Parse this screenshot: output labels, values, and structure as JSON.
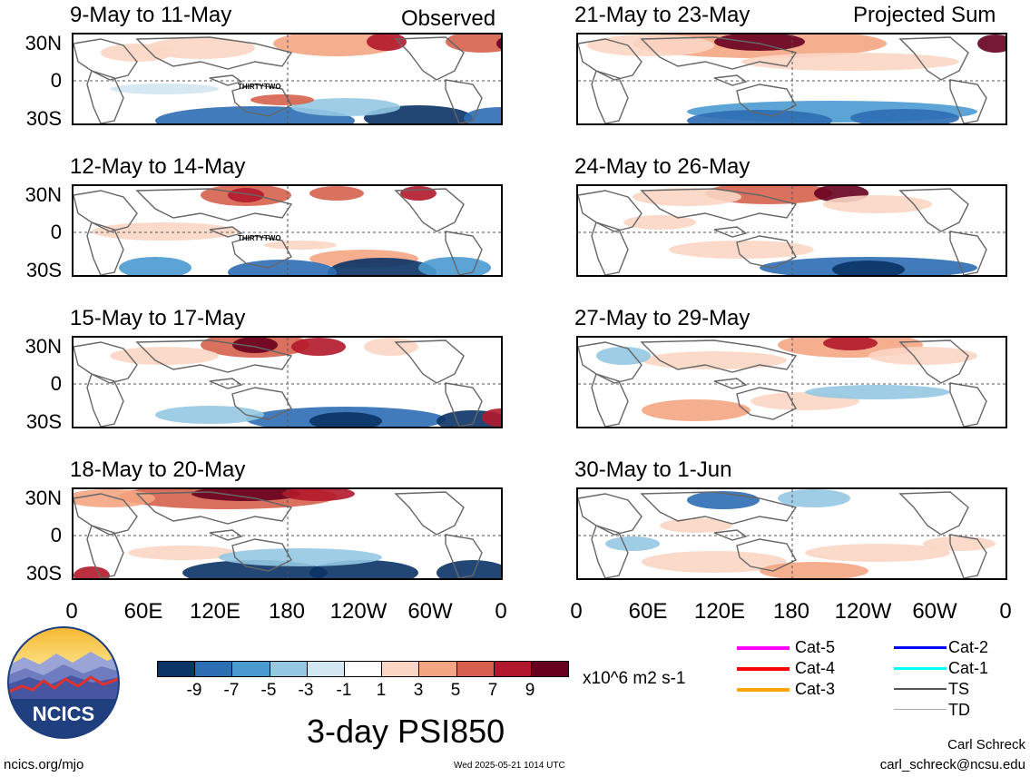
{
  "panels_left": [
    {
      "title": "9-May to 11-May",
      "tag": "Observed",
      "storm": "THIRTYTWO",
      "variant": 0
    },
    {
      "title": "12-May to 14-May",
      "tag": "",
      "storm": "THIRTYTWO",
      "variant": 1
    },
    {
      "title": "15-May to 17-May",
      "tag": "",
      "storm": "",
      "variant": 2
    },
    {
      "title": "18-May to 20-May",
      "tag": "",
      "storm": "",
      "variant": 3
    }
  ],
  "panels_right": [
    {
      "title": "21-May to 23-May",
      "tag": "Projected Sum",
      "storm": "",
      "variant": 4
    },
    {
      "title": "24-May to 26-May",
      "tag": "",
      "storm": "",
      "variant": 5
    },
    {
      "title": "27-May to 29-May",
      "tag": "",
      "storm": "",
      "variant": 6
    },
    {
      "title": "30-May to 1-Jun",
      "tag": "",
      "storm": "",
      "variant": 7
    }
  ],
  "lat_labels": [
    "30N",
    "0",
    "30S"
  ],
  "lon_labels": [
    "0",
    "60E",
    "120E",
    "180",
    "120W",
    "60W",
    "0"
  ],
  "colorbar": {
    "colors": [
      "#0a3366",
      "#2d6db4",
      "#4a9ad0",
      "#94c8e2",
      "#d2e7f1",
      "#ffffff",
      "#fbd6c4",
      "#f4a582",
      "#d6604d",
      "#b2182b",
      "#67001f"
    ],
    "ticks": [
      "-9",
      "-7",
      "-5",
      "-3",
      "-1",
      "1",
      "3",
      "5",
      "7",
      "9"
    ],
    "units": "x10^6 m2 s-1"
  },
  "main_title": "3-day PSI850",
  "legend": [
    {
      "label": "Cat-5",
      "color": "#ff00ff"
    },
    {
      "label": "Cat-4",
      "color": "#ff0000"
    },
    {
      "label": "Cat-3",
      "color": "#ffa500"
    },
    {
      "label": "Cat-2",
      "color": "#0000ff"
    },
    {
      "label": "Cat-1",
      "color": "#00ffff"
    },
    {
      "label": "TS",
      "color": "#555555"
    },
    {
      "label": "TD",
      "color": "#aaaaaa"
    }
  ],
  "logo": {
    "text": "NCICS"
  },
  "footer": {
    "left": "ncics.org/mjo",
    "center": "Wed 2025-05-21 1014 UTC",
    "author": "Carl Schreck",
    "email": "carl_schreck@ncsu.edu"
  }
}
